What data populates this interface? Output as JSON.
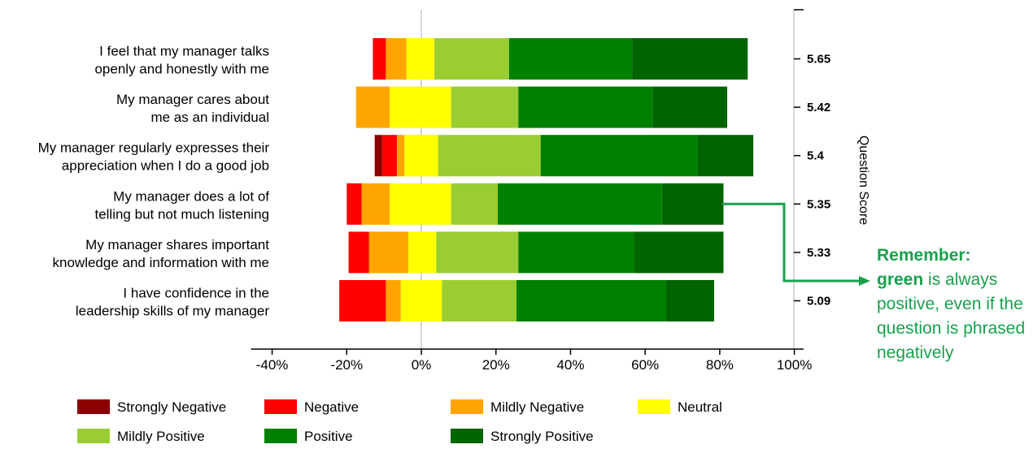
{
  "chart_data": {
    "type": "bar",
    "orientation": "horizontal-diverging-stacked",
    "categories": [
      "I feel that my manager talks openly and honestly with me",
      "My manager cares about me as an individual",
      "My manager regularly expresses their appreciation when I do a good job",
      "My manager does a lot of telling but not much listening",
      "My manager shares important knowledge and information with me",
      "I have confidence in the leadership skills of my manager"
    ],
    "category_lines": [
      [
        "I feel that my manager talks",
        "openly and honestly with me"
      ],
      [
        "My manager cares about",
        "me as an individual"
      ],
      [
        "My manager regularly expresses their",
        "appreciation when I do a good job"
      ],
      [
        "My manager does a lot of",
        "telling but not much listening"
      ],
      [
        "My manager shares important",
        "knowledge and information with me"
      ],
      [
        "I have confidence in the",
        "leadership skills of my manager"
      ]
    ],
    "series": [
      {
        "name": "Strongly Negative",
        "color": "#8b0000",
        "values": [
          0,
          0,
          2,
          0,
          0,
          0
        ]
      },
      {
        "name": "Negative",
        "color": "#ff0000",
        "values": [
          3.5,
          0,
          4,
          4,
          5.5,
          12.5
        ]
      },
      {
        "name": "Mildly Negative",
        "color": "#ffa500",
        "values": [
          5.5,
          9,
          2,
          7.5,
          10.5,
          4
        ]
      },
      {
        "name": "Neutral",
        "color": "#ffff00",
        "values": [
          7.5,
          16.5,
          9,
          16.5,
          7.5,
          11
        ]
      },
      {
        "name": "Mildly Positive",
        "color": "#9acd32",
        "values": [
          20,
          18,
          27.5,
          12.5,
          22,
          20
        ]
      },
      {
        "name": "Positive",
        "color": "#008000",
        "values": [
          33,
          36,
          42,
          44,
          31,
          40
        ]
      },
      {
        "name": "Strongly Positive",
        "color": "#006400",
        "values": [
          31,
          20,
          15,
          16.5,
          24,
          13
        ]
      }
    ],
    "neutral_split": [
      4,
      8.5,
      4.5,
      8.5,
      3.5,
      5.5
    ],
    "xlim": [
      -40,
      100
    ],
    "xticks": [
      -40,
      -20,
      0,
      20,
      40,
      60,
      80,
      100
    ],
    "xtick_labels": [
      "-40%",
      "-20%",
      "0%",
      "20%",
      "40%",
      "60%",
      "80%",
      "100%"
    ],
    "question_scores": [
      "5.65",
      "5.42",
      "5.4",
      "5.35",
      "5.33",
      "5.09"
    ],
    "secondary_axis_label": "Question Score",
    "legend_position": "bottom",
    "grid": false
  },
  "note": {
    "line1": "Remember:",
    "bold": "green",
    "rest": " is always positive, even if the question is phrased negatively",
    "color": "#1aa04d"
  }
}
